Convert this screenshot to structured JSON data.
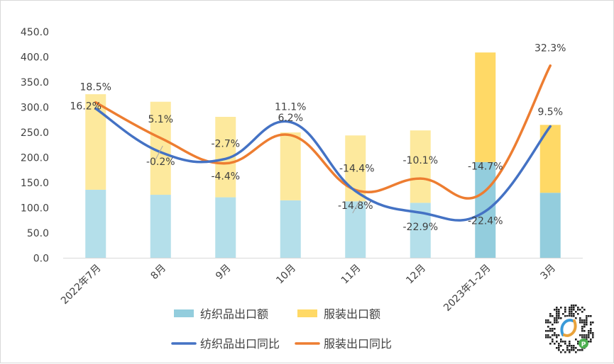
{
  "chart_data": {
    "type": "bar+line",
    "title": "",
    "categories": [
      "2022年7月",
      "8月",
      "9月",
      "10月",
      "11月",
      "12月",
      "2023年1-2月",
      "3月"
    ],
    "ylim": [
      0,
      450
    ],
    "yticks": [
      "0.0",
      "50.0",
      "100.0",
      "150.0",
      "200.0",
      "250.0",
      "300.0",
      "350.0",
      "400.0",
      "450.0"
    ],
    "grid": false,
    "legend": "bottom",
    "stacked_bars": [
      {
        "name": "纺织品出口额",
        "values": [
          136,
          126,
          121,
          115,
          113,
          110,
          191,
          130
        ],
        "color_light": "#b4dfea",
        "color_dark": "#93cddd"
      },
      {
        "name": "服装出口额",
        "values": [
          190,
          185,
          160,
          135,
          131,
          144,
          218,
          135
        ],
        "color_light": "#fde99d",
        "color_dark": "#ffd966"
      }
    ],
    "lines": [
      {
        "name": "纺织品出口同比",
        "color": "#4472c4",
        "labels": [
          "16.2%",
          "-0.2%",
          "-2.7%",
          "11.1%",
          "-14.8%",
          "-22.9%",
          "-22.4%",
          "9.5%"
        ],
        "values": [
          16.2,
          -0.2,
          -2.7,
          11.1,
          -14.8,
          -22.9,
          -22.4,
          9.5
        ]
      },
      {
        "name": "服装出口同比",
        "color": "#ed7d31",
        "labels": [
          "18.5%",
          "5.1%",
          "-4.4%",
          "6.2%",
          "-14.4%",
          "-10.1%",
          "-14.7%",
          "32.3%"
        ],
        "values": [
          18.5,
          5.1,
          -4.4,
          6.2,
          -14.4,
          -10.1,
          -14.7,
          32.3
        ]
      }
    ]
  },
  "badge": {
    "letter": "P"
  }
}
